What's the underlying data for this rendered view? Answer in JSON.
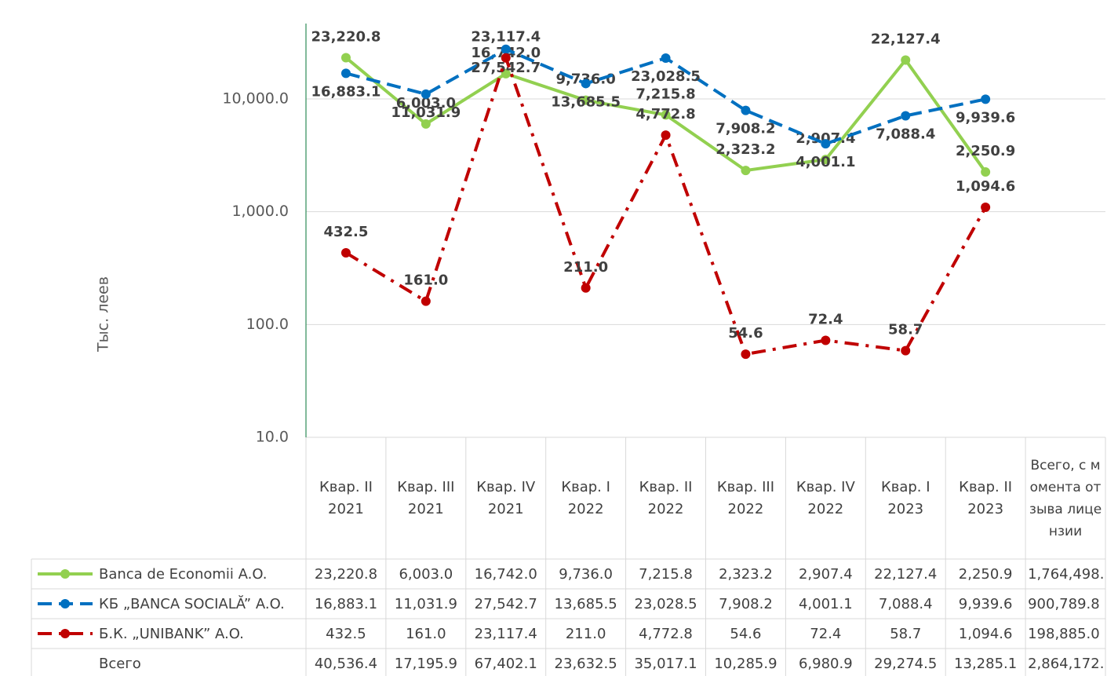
{
  "chart_data": {
    "type": "line",
    "y_label": "Тыс. леев",
    "log_scale": true,
    "grid": true,
    "ylim": [
      10,
      50000
    ],
    "yticks": [
      {
        "value": 10,
        "label": "10.0"
      },
      {
        "value": 100,
        "label": "100.0"
      },
      {
        "value": 1000,
        "label": "1,000.0"
      },
      {
        "value": 10000,
        "label": "10,000.0"
      }
    ],
    "categories": [
      "Квар. II 2021",
      "Квар. III 2021",
      "Квар. IV 2021",
      "Квар. I 2022",
      "Квар. II 2022",
      "Квар. III 2022",
      "Квар. IV 2022",
      "Квар. I 2023",
      "Квар. II 2023"
    ],
    "series": [
      {
        "name": "Banca de Economii A.O.",
        "color": "#92d050",
        "line_style": "solid",
        "values": [
          23220.8,
          6003.0,
          16742.0,
          9736.0,
          7215.8,
          2323.2,
          2907.4,
          22127.4,
          2250.9
        ],
        "value_labels": [
          "23,220.8",
          "6,003.0",
          "16,742.0",
          "9,736.0",
          "7,215.8",
          "2,323.2",
          "2,907.4",
          "22,127.4",
          "2,250.9"
        ]
      },
      {
        "name": "КБ „BANCA SOCIALĂ” A.O.",
        "color": "#0070c0",
        "line_style": "dash",
        "values": [
          16883.1,
          11031.9,
          27542.7,
          13685.5,
          23028.5,
          7908.2,
          4001.1,
          7088.4,
          9939.6
        ],
        "value_labels": [
          "16,883.1",
          "11,031.9",
          "27,542.7",
          "13,685.5",
          "23,028.5",
          "7,908.2",
          "4,001.1",
          "7,088.4",
          "9,939.6"
        ]
      },
      {
        "name": "Б.К. „UNIBANK” A.O.",
        "color": "#c00000",
        "line_style": "dashdot",
        "values": [
          432.5,
          161.0,
          23117.4,
          211.0,
          4772.8,
          54.6,
          72.4,
          58.7,
          1094.6
        ],
        "value_labels": [
          "432.5",
          "161.0",
          "23,117.4",
          "211.0",
          "4,772.8",
          "54.6",
          "72.4",
          "58.7",
          "1,094.6"
        ]
      }
    ]
  },
  "table": {
    "total_header": "Всего, с момента отзыва лицензии",
    "total_values": [
      1764498,
      900789.8,
      198885.0,
      2864172
    ],
    "total_labels": [
      "1,764,498.",
      "900,789.8",
      "198,885.0",
      "2,864,172."
    ],
    "sum_label": "Всего",
    "sum_values": [
      40536.4,
      17195.9,
      67402.1,
      23632.5,
      35017.1,
      10285.9,
      6980.9,
      29274.5,
      13285.1
    ],
    "sum_labels": [
      "40,536.4",
      "17,195.9",
      "67,402.1",
      "23,632.5",
      "35,017.1",
      "10,285.9",
      "6,980.9",
      "29,274.5",
      "13,285.1"
    ]
  }
}
